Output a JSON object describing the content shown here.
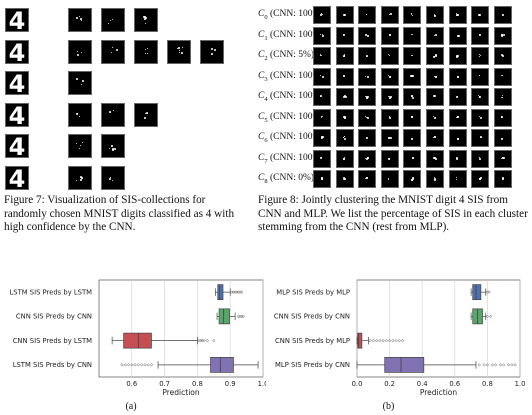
{
  "figure7": {
    "caption": "Figure 7: Visualization of SIS-collections for randomly chosen MNIST digits classified as 4 with high confidence by the CNN.",
    "digit_glyph": "4",
    "rows": [
      {
        "sis_count": 3
      },
      {
        "sis_count": 5
      },
      {
        "sis_count": 1
      },
      {
        "sis_count": 3
      },
      {
        "sis_count": 2
      },
      {
        "sis_count": 2
      }
    ]
  },
  "figure8": {
    "caption": "Figure 8: Jointly clustering the MNIST digit 4 SIS from CNN and MLP. We list the percentage of SIS in each cluster stemming from the CNN (rest from MLP).",
    "clusters": [
      {
        "label": "C",
        "index": "0",
        "cnn": "(CNN: 100%)"
      },
      {
        "label": "C",
        "index": "1",
        "cnn": "(CNN: 100%)"
      },
      {
        "label": "C",
        "index": "2",
        "cnn": "(CNN: 5%)"
      },
      {
        "label": "C",
        "index": "3",
        "cnn": "(CNN: 100%)"
      },
      {
        "label": "C",
        "index": "4",
        "cnn": "(CNN: 100%)"
      },
      {
        "label": "C",
        "index": "5",
        "cnn": "(CNN: 100%)"
      },
      {
        "label": "C",
        "index": "6",
        "cnn": "(CNN: 100%)"
      },
      {
        "label": "C",
        "index": "7",
        "cnn": "(CNN: 100%)"
      },
      {
        "label": "C",
        "index": "8",
        "cnn": "(CNN: 0%)"
      }
    ],
    "tiles_per_row": 9
  },
  "chart_data": [
    {
      "type": "box",
      "sublabel": "(a)",
      "xlabel": "Prediction",
      "xlim": [
        0.5,
        1.0
      ],
      "xticks": [
        "0.6",
        "0.7",
        "0.8",
        "0.9",
        "1.0"
      ],
      "xtick_values": [
        0.6,
        0.7,
        0.8,
        0.9,
        1.0
      ],
      "grid": true,
      "series": [
        {
          "name": "LSTM SIS Preds by LSTM",
          "color": "#4c72b0",
          "whislo": 0.855,
          "q1": 0.862,
          "med": 0.868,
          "q3": 0.878,
          "whishi": 0.9,
          "fliers": [
            0.905,
            0.91,
            0.915,
            0.92,
            0.925,
            0.93,
            0.935
          ]
        },
        {
          "name": "CNN SIS Preds by CNN",
          "color": "#55a868",
          "whislo": 0.86,
          "q1": 0.866,
          "med": 0.88,
          "q3": 0.898,
          "whishi": 0.915,
          "fliers": [
            0.925,
            0.93,
            0.935,
            0.94
          ]
        },
        {
          "name": "CNN SIS Preds by LSTM",
          "color": "#c44e52",
          "whislo": 0.54,
          "q1": 0.575,
          "med": 0.62,
          "q3": 0.66,
          "whishi": 0.8,
          "fliers": [
            0.805,
            0.81,
            0.815,
            0.82,
            0.83,
            0.85
          ]
        },
        {
          "name": "LSTM SIS Preds by CNN",
          "color": "#8172b2",
          "whislo": 0.68,
          "q1": 0.84,
          "med": 0.87,
          "q3": 0.91,
          "whishi": 0.985,
          "fliers": [
            0.57,
            0.58,
            0.59,
            0.6,
            0.61,
            0.62,
            0.63,
            0.64,
            0.65,
            0.66
          ]
        }
      ]
    },
    {
      "type": "box",
      "sublabel": "(b)",
      "xlabel": "Prediction",
      "xlim": [
        0.0,
        1.0
      ],
      "xticks": [
        "0.0",
        "0.2",
        "0.4",
        "0.6",
        "0.8",
        "1.0"
      ],
      "xtick_values": [
        0.0,
        0.2,
        0.4,
        0.6,
        0.8,
        1.0
      ],
      "grid": true,
      "series": [
        {
          "name": "MLP SIS Preds by MLP",
          "color": "#4c72b0",
          "whislo": 0.7,
          "q1": 0.71,
          "med": 0.73,
          "q3": 0.76,
          "whishi": 0.79,
          "fliers": [
            0.8,
            0.81
          ]
        },
        {
          "name": "CNN SIS Preds by CNN",
          "color": "#55a868",
          "whislo": 0.7,
          "q1": 0.71,
          "med": 0.74,
          "q3": 0.77,
          "whishi": 0.79,
          "fliers": [
            0.8,
            0.82
          ]
        },
        {
          "name": "CNN SIS Preds by MLP",
          "color": "#c44e52",
          "whislo": 0.0,
          "q1": 0.005,
          "med": 0.01,
          "q3": 0.03,
          "whishi": 0.07,
          "fliers": [
            0.08,
            0.1,
            0.12,
            0.14,
            0.16,
            0.18,
            0.2,
            0.22,
            0.24,
            0.26,
            0.28
          ]
        },
        {
          "name": "MLP SIS Preds by CNN",
          "color": "#8172b2",
          "whislo": 0.0,
          "q1": 0.17,
          "med": 0.27,
          "q3": 0.41,
          "whishi": 0.73,
          "fliers": [
            0.75,
            0.78,
            0.8,
            0.83,
            0.85,
            0.88,
            0.9,
            0.93,
            0.95,
            0.97
          ]
        }
      ]
    }
  ]
}
